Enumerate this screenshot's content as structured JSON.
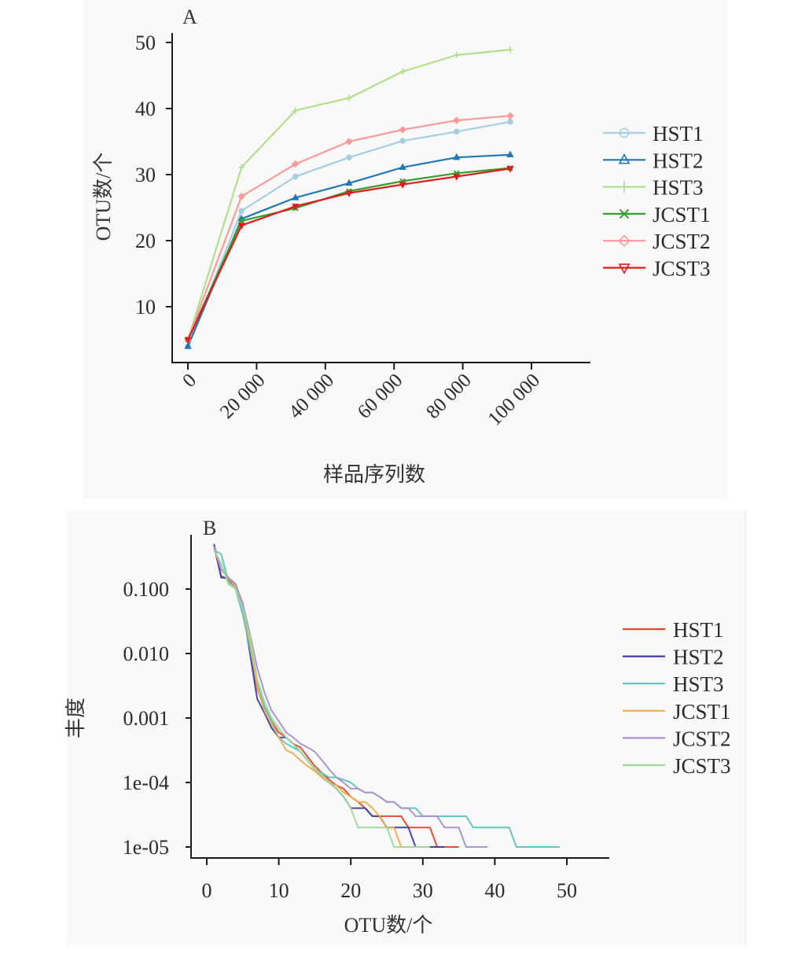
{
  "chart_data": [
    {
      "id": "A",
      "type": "line",
      "panel_label": "A",
      "title": "",
      "xlabel": "样品序列数",
      "ylabel": "OTU数/个",
      "xlim": [
        0,
        120000
      ],
      "ylim": [
        3,
        51
      ],
      "x_ticks": [
        0,
        20000,
        40000,
        60000,
        80000,
        100000
      ],
      "x_tick_labels": [
        "0",
        "20 000",
        "40 000",
        "60 000",
        "80 000",
        "100 000"
      ],
      "y_ticks": [
        10,
        20,
        30,
        40,
        50
      ],
      "y_tick_labels": [
        "10",
        "20",
        "30",
        "40",
        "50"
      ],
      "grid": false,
      "legend_position": "right",
      "x": [
        0,
        15600,
        31300,
        46900,
        62500,
        78200,
        93800
      ],
      "series": [
        {
          "name": "HST1",
          "color": "#a6cee3",
          "marker": "circle",
          "values": [
            4.0,
            24.5,
            29.7,
            32.6,
            35.1,
            36.5,
            38.0
          ]
        },
        {
          "name": "HST2",
          "color": "#1f78b4",
          "marker": "triangle-up",
          "values": [
            4.0,
            23.3,
            26.5,
            28.7,
            31.1,
            32.6,
            33.0
          ]
        },
        {
          "name": "HST3",
          "color": "#b2df8a",
          "marker": "plus",
          "values": [
            5.0,
            31.1,
            39.7,
            41.6,
            45.6,
            48.1,
            48.9
          ]
        },
        {
          "name": "JCST1",
          "color": "#33a02c",
          "marker": "x",
          "values": [
            5.0,
            23.0,
            24.9,
            27.5,
            29.0,
            30.2,
            31.0
          ]
        },
        {
          "name": "JCST2",
          "color": "#fb9a99",
          "marker": "diamond",
          "values": [
            5.0,
            26.7,
            31.6,
            35.0,
            36.8,
            38.2,
            38.9
          ]
        },
        {
          "name": "JCST3",
          "color": "#e31a1c",
          "marker": "triangle-down",
          "values": [
            5.0,
            22.3,
            25.2,
            27.2,
            28.5,
            29.7,
            30.9
          ]
        }
      ]
    },
    {
      "id": "B",
      "type": "line",
      "panel_label": "B",
      "title": "",
      "xlabel": "OTU数/个",
      "ylabel": "丰度",
      "yscale": "log",
      "xlim": [
        -2,
        55
      ],
      "ylim": [
        8.5e-06,
        0.6
      ],
      "x_ticks": [
        0,
        10,
        20,
        30,
        40,
        50
      ],
      "x_tick_labels": [
        "0",
        "10",
        "20",
        "30",
        "40",
        "50"
      ],
      "y_ticks": [
        0.1,
        0.01,
        0.001,
        0.0001,
        1e-05
      ],
      "y_tick_labels": [
        "0.100",
        "0.010",
        "0.001",
        "1e-04",
        "1e-05"
      ],
      "grid": false,
      "legend_position": "right",
      "series": [
        {
          "name": "HST1",
          "color": "#e8462a",
          "x": [
            1,
            2,
            3,
            4,
            5,
            6,
            7,
            8,
            9,
            10,
            11,
            12,
            13,
            14,
            15,
            16,
            17,
            18,
            19,
            20,
            21,
            22,
            23,
            24,
            25,
            26,
            27,
            28,
            29,
            30,
            31,
            32,
            33,
            34,
            35
          ],
          "values": [
            0.45,
            0.16,
            0.14,
            0.11,
            0.05,
            0.012,
            0.0028,
            0.0015,
            0.0009,
            0.0006,
            0.0005,
            0.0004,
            0.00035,
            0.00025,
            0.00018,
            0.00014,
            0.00011,
            9e-05,
            8e-05,
            6e-05,
            5e-05,
            4e-05,
            3e-05,
            3e-05,
            3e-05,
            3e-05,
            3e-05,
            2e-05,
            2e-05,
            2e-05,
            2e-05,
            1e-05,
            1e-05,
            1e-05,
            1e-05
          ]
        },
        {
          "name": "HST2",
          "color": "#3b3fa6",
          "x": [
            1,
            2,
            3,
            4,
            5,
            6,
            7,
            8,
            9,
            10,
            11,
            12,
            13,
            14,
            15,
            16,
            17,
            18,
            19,
            20,
            21,
            22,
            23,
            24,
            25,
            26,
            27,
            28,
            29,
            30,
            31,
            32,
            33
          ],
          "values": [
            0.5,
            0.15,
            0.15,
            0.12,
            0.05,
            0.01,
            0.002,
            0.0012,
            0.0007,
            0.0005,
            0.0005,
            0.0004,
            0.0003,
            0.00022,
            0.00016,
            0.00012,
            0.0001,
            8e-05,
            6e-05,
            4e-05,
            4e-05,
            4e-05,
            3e-05,
            3e-05,
            2e-05,
            2e-05,
            2e-05,
            2e-05,
            1e-05,
            1e-05,
            1e-05,
            1e-05,
            1e-05
          ]
        },
        {
          "name": "HST3",
          "color": "#5bc4c0",
          "x": [
            1,
            2,
            3,
            4,
            5,
            6,
            7,
            8,
            9,
            10,
            11,
            12,
            13,
            14,
            15,
            16,
            17,
            18,
            19,
            20,
            21,
            22,
            23,
            24,
            25,
            26,
            27,
            28,
            29,
            30,
            31,
            32,
            33,
            34,
            35,
            36,
            37,
            38,
            39,
            40,
            41,
            42,
            43,
            44,
            45,
            46,
            47,
            48,
            49
          ],
          "values": [
            0.4,
            0.35,
            0.13,
            0.1,
            0.04,
            0.012,
            0.0035,
            0.0015,
            0.0009,
            0.0005,
            0.0004,
            0.00035,
            0.0003,
            0.00022,
            0.00016,
            0.00014,
            0.00012,
            0.00012,
            0.00011,
            0.0001,
            8e-05,
            7e-05,
            7e-05,
            6e-05,
            5e-05,
            5e-05,
            4e-05,
            4e-05,
            4e-05,
            3e-05,
            3e-05,
            3e-05,
            3e-05,
            3e-05,
            3e-05,
            3e-05,
            2e-05,
            2e-05,
            2e-05,
            2e-05,
            2e-05,
            2e-05,
            1e-05,
            1e-05,
            1e-05,
            1e-05,
            1e-05,
            1e-05,
            1e-05
          ]
        },
        {
          "name": "JCST1",
          "color": "#f5a94a",
          "x": [
            1,
            2,
            3,
            4,
            5,
            6,
            7,
            8,
            9,
            10,
            11,
            12,
            13,
            14,
            15,
            16,
            17,
            18,
            19,
            20,
            21,
            22,
            23,
            24,
            25,
            26,
            27,
            28,
            29,
            30,
            31
          ],
          "values": [
            0.45,
            0.2,
            0.15,
            0.11,
            0.05,
            0.015,
            0.003,
            0.0013,
            0.0008,
            0.0005,
            0.00032,
            0.00028,
            0.00022,
            0.00018,
            0.00015,
            0.00012,
            0.0001,
            9e-05,
            7e-05,
            6e-05,
            5e-05,
            5e-05,
            4e-05,
            3e-05,
            2e-05,
            2e-05,
            1e-05,
            1e-05,
            1e-05,
            1e-05,
            1e-05
          ]
        },
        {
          "name": "JCST2",
          "color": "#a98fd0",
          "x": [
            1,
            2,
            3,
            4,
            5,
            6,
            7,
            8,
            9,
            10,
            11,
            12,
            13,
            14,
            15,
            16,
            17,
            18,
            19,
            20,
            21,
            22,
            23,
            24,
            25,
            26,
            27,
            28,
            29,
            30,
            31,
            32,
            33,
            34,
            35,
            36,
            37,
            38,
            39
          ],
          "values": [
            0.45,
            0.2,
            0.15,
            0.12,
            0.06,
            0.02,
            0.006,
            0.0025,
            0.0013,
            0.0009,
            0.0006,
            0.0005,
            0.0004,
            0.00035,
            0.0003,
            0.00022,
            0.00016,
            0.00012,
            0.0001,
            8e-05,
            8e-05,
            7e-05,
            7e-05,
            6e-05,
            5e-05,
            5e-05,
            4e-05,
            4e-05,
            3e-05,
            3e-05,
            3e-05,
            3e-05,
            2e-05,
            2e-05,
            2e-05,
            1e-05,
            1e-05,
            1e-05,
            1e-05
          ]
        },
        {
          "name": "JCST3",
          "color": "#9fd89a",
          "x": [
            1,
            2,
            3,
            4,
            5,
            6,
            7,
            8,
            9,
            10,
            11,
            12,
            13,
            14,
            15,
            16,
            17,
            18,
            19,
            20,
            21,
            22,
            23,
            24,
            25,
            26,
            27,
            28,
            29,
            30,
            31
          ],
          "values": [
            0.4,
            0.25,
            0.12,
            0.1,
            0.05,
            0.018,
            0.004,
            0.0018,
            0.001,
            0.0007,
            0.0005,
            0.0004,
            0.0003,
            0.00022,
            0.00016,
            0.00013,
            0.0001,
            8e-05,
            6e-05,
            4e-05,
            2e-05,
            2e-05,
            2e-05,
            2e-05,
            2e-05,
            1e-05,
            1e-05,
            1e-05,
            1e-05,
            1e-05,
            1e-05
          ]
        }
      ]
    }
  ]
}
